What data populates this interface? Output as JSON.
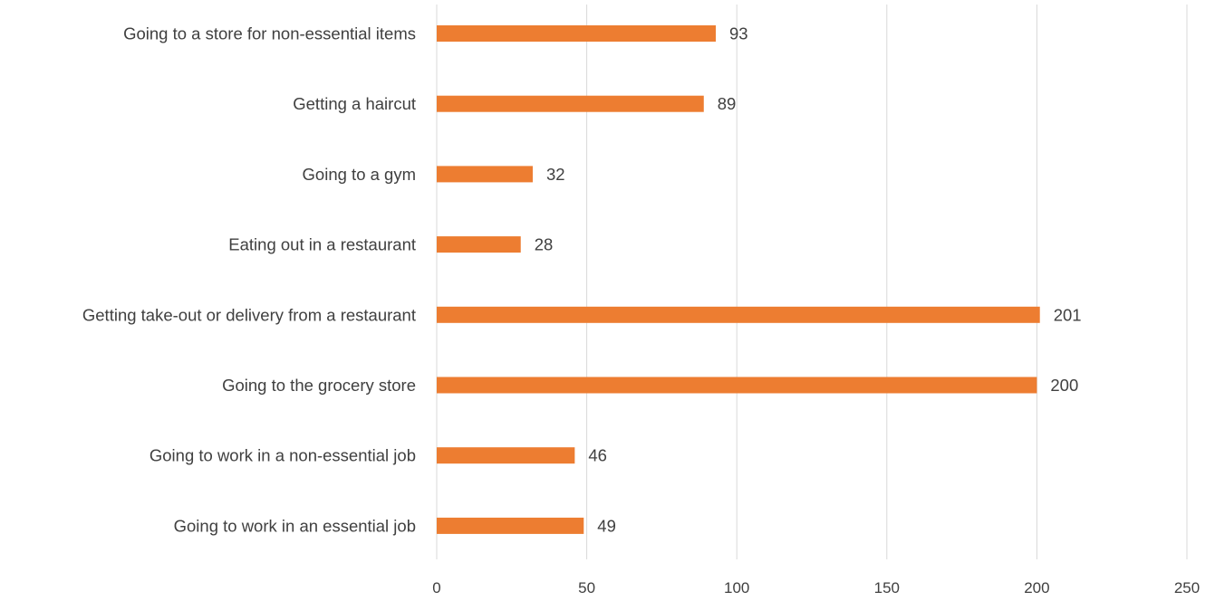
{
  "chart_data": {
    "type": "bar",
    "orientation": "horizontal",
    "title": "",
    "xlabel": "",
    "ylabel": "",
    "categories": [
      "Going to a store for non-essential items",
      "Getting a haircut",
      "Going to a gym",
      "Eating out in a restaurant",
      "Getting take-out or delivery from a restaurant",
      "Going to the grocery store",
      "Going to work in a non-essential job",
      "Going to work in an essential job"
    ],
    "values": [
      93,
      89,
      32,
      28,
      201,
      200,
      46,
      49
    ],
    "xlim": [
      0,
      250
    ],
    "xticks": [
      0,
      50,
      100,
      150,
      200,
      250
    ],
    "xtick_labels": [
      "0",
      "50",
      "100",
      "150",
      "200",
      "250"
    ],
    "grid": "vertical",
    "legend": "none",
    "data_labels": true,
    "colors": {
      "bar": "#ED7D31",
      "grid": "#D9D9D9",
      "text": "#404040"
    }
  }
}
